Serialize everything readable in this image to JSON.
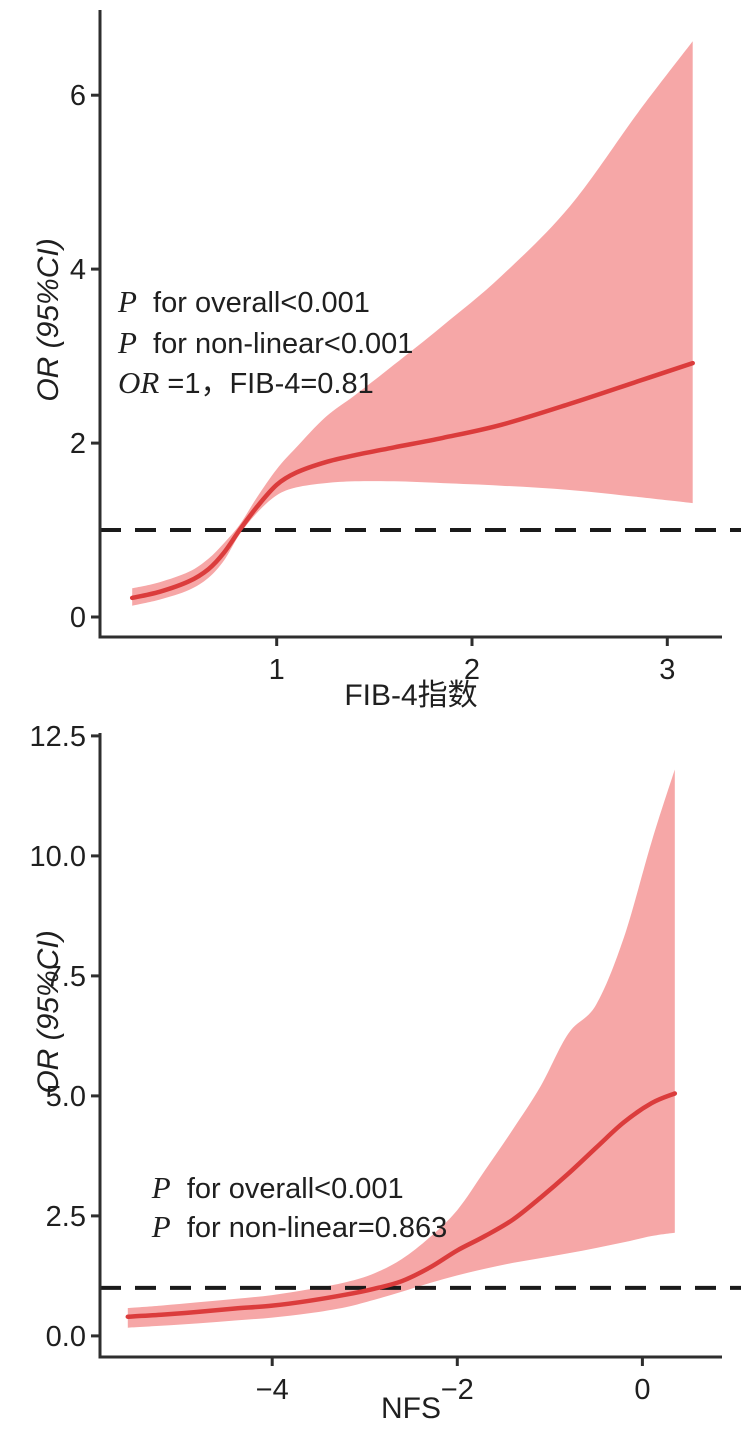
{
  "figure": {
    "background": "#ffffff",
    "style": {
      "curve_color": "#db3c3c",
      "ci_band_color": "#f6a7a7",
      "axis_color": "#2e2e2e",
      "text_color": "#1f1f1f",
      "reference_line_color": "#1a1a1a"
    },
    "chart_data": [
      {
        "type": "line",
        "title": "",
        "xlabel": "FIB-4指数",
        "ylabel": "OR (95%CI)",
        "xlim": [
          0.095,
          3.28
        ],
        "ylim": [
          -0.23,
          6.98
        ],
        "xticks": [
          1,
          2,
          3
        ],
        "xtick_labels": [
          "1",
          "2",
          "3"
        ],
        "yticks": [
          0,
          2,
          4,
          6
        ],
        "ytick_labels": [
          "0",
          "2",
          "4",
          "6"
        ],
        "grid": false,
        "legend_position": "none",
        "reference_line_y": 1,
        "annotations": [
          {
            "prefix": "P",
            "text": "  for overall<0.001",
            "x": 0.187,
            "y": 3.62
          },
          {
            "prefix": "P",
            "text": "  for non-linear<0.001",
            "x": 0.187,
            "y": 3.15
          },
          {
            "prefix": "OR",
            "text": " =1，FIB-4=0.81",
            "x": 0.187,
            "y": 2.69
          }
        ],
        "series": [
          {
            "name": "OR spline (FIB-4)",
            "x": [
              0.26,
              0.4,
              0.55,
              0.65,
              0.73,
              0.81,
              0.9,
              1.0,
              1.1,
              1.25,
              1.4,
              1.6,
              1.85,
              2.15,
              2.5,
              2.85,
              3.13
            ],
            "y": [
              0.22,
              0.29,
              0.41,
              0.55,
              0.74,
              1.0,
              1.27,
              1.52,
              1.66,
              1.78,
              1.86,
              1.95,
              2.06,
              2.21,
              2.45,
              2.71,
              2.92
            ]
          }
        ],
        "ci_band": {
          "x": [
            0.26,
            0.4,
            0.55,
            0.65,
            0.73,
            0.81,
            0.9,
            1.0,
            1.1,
            1.25,
            1.4,
            1.6,
            1.85,
            2.15,
            2.5,
            2.85,
            3.13
          ],
          "lower": [
            0.13,
            0.2,
            0.31,
            0.45,
            0.65,
            0.95,
            1.2,
            1.4,
            1.49,
            1.54,
            1.56,
            1.56,
            1.54,
            1.51,
            1.46,
            1.38,
            1.31
          ],
          "upper": [
            0.33,
            0.4,
            0.52,
            0.67,
            0.85,
            1.06,
            1.38,
            1.7,
            1.95,
            2.3,
            2.55,
            2.9,
            3.35,
            3.92,
            4.72,
            5.8,
            6.62
          ]
        }
      },
      {
        "type": "line",
        "title": "",
        "xlabel": "NFS",
        "ylabel": "OR (95%CI)",
        "xlim": [
          -5.86,
          0.86
        ],
        "ylim": [
          -0.44,
          12.56
        ],
        "xticks": [
          -4,
          -2,
          0
        ],
        "xtick_labels": [
          "−4",
          "−2",
          "0"
        ],
        "yticks": [
          0,
          2.5,
          5,
          7.5,
          10,
          12.5
        ],
        "ytick_labels": [
          "0.0",
          "2.5",
          "5.0",
          "7.5",
          "10.0",
          "12.5"
        ],
        "grid": false,
        "legend_position": "none",
        "reference_line_y": 1,
        "annotations": [
          {
            "prefix": "P",
            "text": "  for overall<0.001",
            "x": -5.3,
            "y": 3.08
          },
          {
            "prefix": "P",
            "text": "  for non-linear=0.863",
            "x": -5.3,
            "y": 2.27
          }
        ],
        "series": [
          {
            "name": "OR spline (NFS)",
            "x": [
              -5.56,
              -5.2,
              -4.8,
              -4.4,
              -4.0,
              -3.6,
              -3.2,
              -2.9,
              -2.6,
              -2.3,
              -2.0,
              -1.7,
              -1.4,
              -1.1,
              -0.8,
              -0.5,
              -0.2,
              0.1,
              0.35
            ],
            "y": [
              0.4,
              0.44,
              0.5,
              0.57,
              0.63,
              0.73,
              0.86,
              0.98,
              1.14,
              1.42,
              1.78,
              2.08,
              2.42,
              2.88,
              3.38,
              3.92,
              4.45,
              4.85,
              5.05
            ]
          }
        ],
        "ci_band": {
          "x": [
            -5.56,
            -5.2,
            -4.8,
            -4.4,
            -4.0,
            -3.6,
            -3.2,
            -2.9,
            -2.6,
            -2.3,
            -2.0,
            -1.7,
            -1.4,
            -1.1,
            -0.8,
            -0.5,
            -0.2,
            0.1,
            0.35
          ],
          "lower": [
            0.17,
            0.21,
            0.26,
            0.32,
            0.38,
            0.47,
            0.6,
            0.75,
            0.92,
            1.1,
            1.26,
            1.4,
            1.52,
            1.62,
            1.72,
            1.83,
            1.95,
            2.08,
            2.15
          ],
          "upper": [
            0.58,
            0.63,
            0.7,
            0.77,
            0.85,
            0.97,
            1.12,
            1.3,
            1.6,
            2.05,
            2.62,
            3.45,
            4.3,
            5.2,
            6.3,
            6.9,
            8.3,
            10.3,
            11.8
          ]
        }
      }
    ]
  }
}
